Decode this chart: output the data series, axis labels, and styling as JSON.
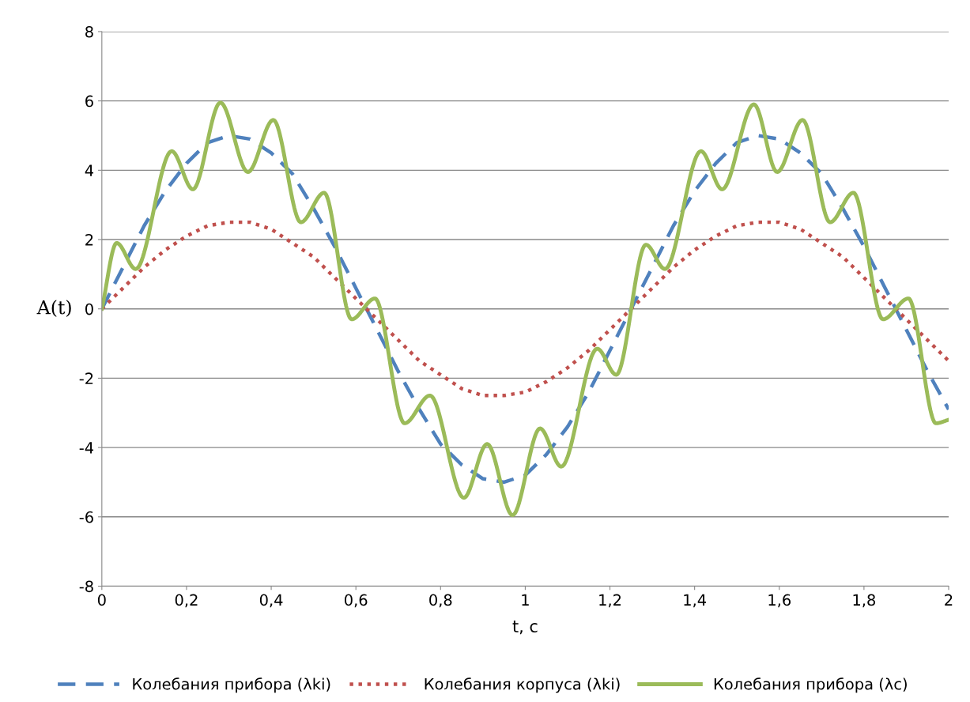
{
  "chart_data": {
    "type": "line",
    "xlabel": "t, c",
    "ylabel": "A(t)",
    "xlim": [
      0,
      2
    ],
    "xticks": [
      0,
      {
        "value": 0.2,
        "label": "0,2"
      },
      {
        "value": 0.4,
        "label": "0,4"
      },
      {
        "value": 0.6,
        "label": "0,6"
      },
      {
        "value": 0.8,
        "label": "0,8"
      },
      1,
      {
        "value": 1.2,
        "label": "1,2"
      },
      {
        "value": 1.4,
        "label": "1,4"
      },
      {
        "value": 1.6,
        "label": "1,6"
      },
      {
        "value": 1.8,
        "label": "1,8"
      },
      2
    ],
    "ylim": [
      -8,
      8
    ],
    "yticks": [
      -8,
      -6,
      -4,
      -2,
      0,
      2,
      4,
      6,
      8
    ],
    "grid": "y",
    "legend": "bottom",
    "marker": "none",
    "x": [
      0,
      0.05,
      0.1,
      0.15,
      0.2,
      0.25,
      0.3,
      0.35,
      0.4,
      0.45,
      0.5,
      0.55,
      0.6,
      0.65,
      0.7,
      0.75,
      0.8,
      0.85,
      0.9,
      0.95,
      1,
      1.05,
      1.1,
      1.15,
      1.2,
      1.25,
      1.3,
      1.35,
      1.4,
      1.45,
      1.5,
      1.55,
      1.6,
      1.65,
      1.7,
      1.75,
      1.8,
      1.85,
      1.9,
      1.95,
      2
    ],
    "series": [
      {
        "name": "Колебания прибора (λki)",
        "color": "#4f81bd",
        "line_style": "dashed",
        "values": [
          0,
          1.2,
          2.4,
          3.4,
          4.2,
          4.8,
          5,
          4.9,
          4.5,
          3.9,
          2.9,
          1.8,
          0.6,
          -0.6,
          -1.8,
          -2.9,
          -3.9,
          -4.5,
          -4.9,
          -5,
          -4.8,
          -4.2,
          -3.4,
          -2.4,
          -1.2,
          0,
          1.2,
          2.4,
          3.4,
          4.2,
          4.8,
          5,
          4.9,
          4.5,
          3.9,
          2.9,
          1.8,
          0.6,
          -0.6,
          -1.8,
          -2.9
        ]
      },
      {
        "name": "Колебания корпуса (λki)",
        "color": "#c0504d",
        "line_style": "dotted",
        "values": [
          0,
          0.6,
          1.2,
          1.7,
          2.1,
          2.4,
          2.5,
          2.5,
          2.3,
          1.9,
          1.5,
          0.9,
          0.3,
          -0.3,
          -0.9,
          -1.5,
          -1.9,
          -2.3,
          -2.5,
          -2.5,
          -2.4,
          -2.1,
          -1.7,
          -1.2,
          -0.6,
          0,
          0.6,
          1.2,
          1.7,
          2.1,
          2.4,
          2.5,
          2.5,
          2.3,
          1.9,
          1.5,
          0.9,
          0.3,
          -0.3,
          -0.9,
          -1.5
        ]
      },
      {
        "name": "Колебания прибора (λc)",
        "color": "#9bbb59",
        "line_style": "solid",
        "x": [
          0,
          0.035,
          0.08,
          0.165,
          0.215,
          0.28,
          0.345,
          0.405,
          0.47,
          0.525,
          0.59,
          0.645,
          0.715,
          0.775,
          0.855,
          0.91,
          0.97,
          1.035,
          1.085,
          1.17,
          1.215,
          1.285,
          1.33,
          1.415,
          1.465,
          1.54,
          1.595,
          1.655,
          1.72,
          1.775,
          1.845,
          1.905,
          1.97,
          2
        ],
        "values": [
          0,
          1.9,
          1.15,
          4.55,
          3.45,
          5.95,
          3.95,
          5.45,
          2.5,
          3.35,
          -0.3,
          0.3,
          -3.3,
          -2.5,
          -5.45,
          -3.9,
          -5.95,
          -3.45,
          -4.55,
          -1.15,
          -1.9,
          1.85,
          1.15,
          4.55,
          3.45,
          5.9,
          3.95,
          5.45,
          2.5,
          3.35,
          -0.3,
          0.3,
          -3.3,
          -3.2
        ]
      }
    ]
  }
}
